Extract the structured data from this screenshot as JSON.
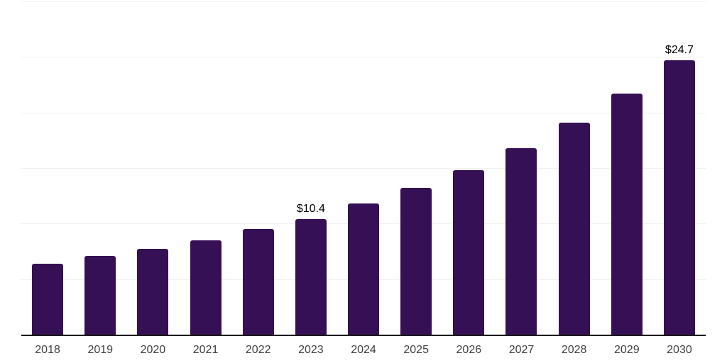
{
  "chart_data": {
    "type": "bar",
    "title": "",
    "xlabel": "",
    "ylabel": "",
    "categories": [
      "2018",
      "2019",
      "2020",
      "2021",
      "2022",
      "2023",
      "2024",
      "2025",
      "2026",
      "2027",
      "2028",
      "2029",
      "2030"
    ],
    "values": [
      6.4,
      7.1,
      7.7,
      8.5,
      9.5,
      10.4,
      11.8,
      13.2,
      14.8,
      16.8,
      19.1,
      21.7,
      24.7
    ],
    "point_labels": [
      "",
      "",
      "",
      "",
      "",
      "$10.4",
      "",
      "",
      "",
      "",
      "",
      "",
      "$24.7"
    ],
    "ylim": [
      0,
      30
    ],
    "gridline_step": 5,
    "grid": "horizontal",
    "legend": "none"
  },
  "colors": {
    "bar": "#361054",
    "gridline": "#f0f0f0",
    "axis_line": "#1a1a1a",
    "tick_text": "#404040",
    "point_label_text": "#000000",
    "background": "#ffffff"
  }
}
